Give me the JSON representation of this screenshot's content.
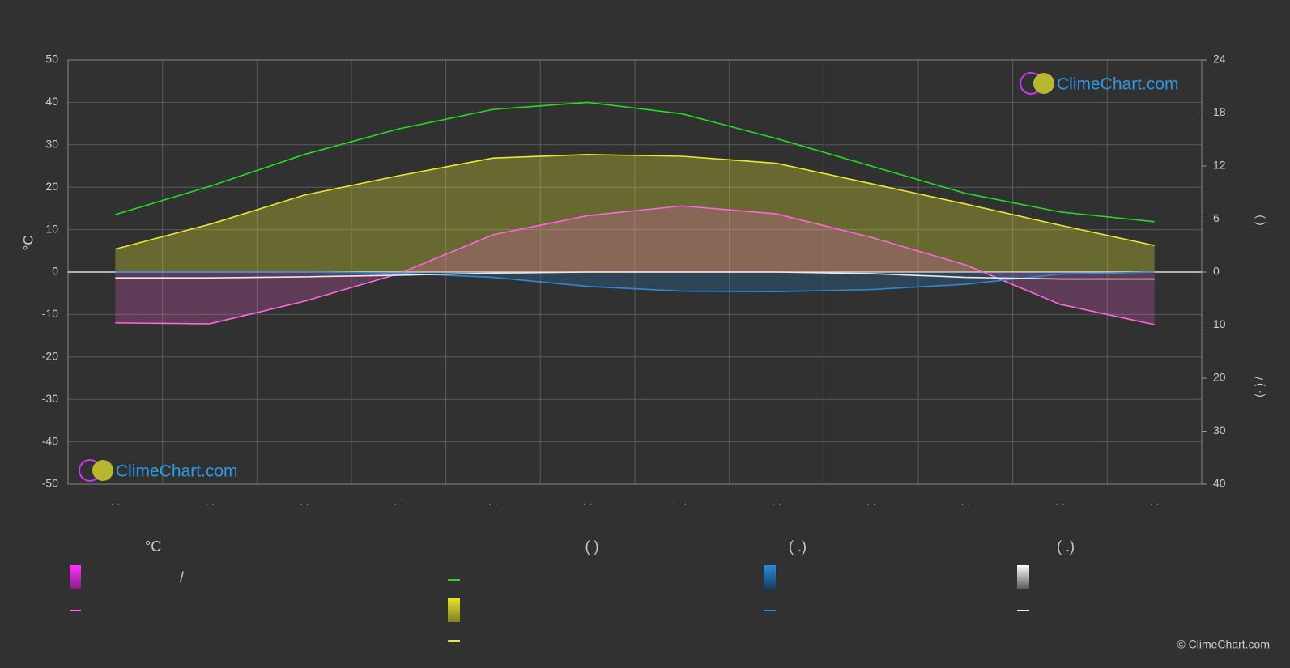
{
  "chart_data": {
    "type": "line",
    "y_label": "°C",
    "y2_label": "(    )",
    "y3_label": "(· )     /",
    "categories": [
      ". .",
      ". .",
      ". .",
      ". .",
      ". .",
      ". .",
      ". .",
      ". .",
      ". .",
      ". .",
      ". .",
      ". ."
    ],
    "ylim": [
      -50,
      50
    ],
    "yticks": [
      -50,
      -40,
      -30,
      -20,
      -10,
      0,
      10,
      20,
      30,
      40,
      50
    ],
    "y2lim": [
      0,
      24
    ],
    "y2ticks": [
      0,
      6,
      12,
      18,
      24
    ],
    "y3lim": [
      0,
      40
    ],
    "y3ticks": [
      10,
      20,
      30,
      40
    ],
    "grid": true,
    "series": [
      {
        "color": "#22dd22",
        "axis": "y2",
        "values": [
          6.5,
          9.7,
          13.3,
          16.2,
          18.4,
          19.2,
          17.9,
          15.1,
          12.0,
          8.9,
          6.8,
          5.7
        ]
      },
      {
        "color": "#e8e832",
        "axis": "y2",
        "values": [
          2.6,
          5.4,
          8.7,
          10.9,
          12.9,
          13.3,
          13.1,
          12.3,
          10.0,
          7.7,
          5.3,
          3.0
        ]
      },
      {
        "color": "#ff66dd",
        "axis": "y",
        "values": [
          -12.0,
          -12.2,
          -6.9,
          -0.4,
          8.8,
          13.3,
          15.6,
          13.7,
          8.2,
          1.7,
          -7.6,
          -12.4
        ]
      },
      {
        "color": "#2a8ad8",
        "axis": "y3",
        "values": [
          0,
          0,
          0,
          0.2,
          1.0,
          2.7,
          3.6,
          3.7,
          3.3,
          2.3,
          0.4,
          0
        ]
      },
      {
        "color": "#e8e8e8",
        "axis": "y3",
        "values": [
          1.1,
          1.1,
          0.9,
          0.6,
          0.2,
          0,
          0,
          0,
          0.3,
          1.0,
          1.3,
          1.3
        ]
      }
    ],
    "legend_headers": [
      "°C",
      "(          )",
      "(   .)",
      "(   .)"
    ],
    "legend_slash": "/",
    "watermark": "ClimeChart.com",
    "copyright": "© ClimeChart.com"
  }
}
